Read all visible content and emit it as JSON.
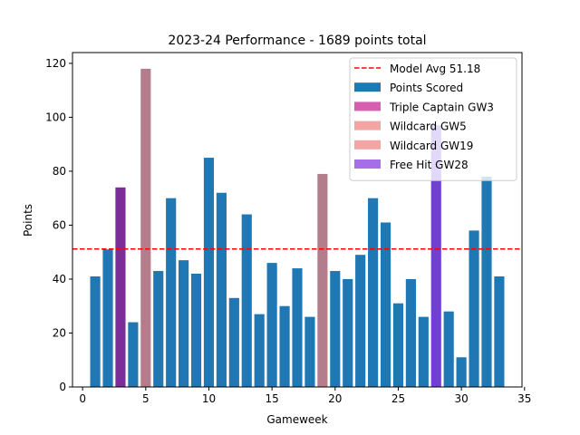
{
  "chart_data": {
    "type": "bar",
    "title": "2023-24 Performance - 1689 points total",
    "xlabel": "Gameweek",
    "ylabel": "Points",
    "xlim": [
      -0.8,
      34.8
    ],
    "ylim": [
      0,
      124
    ],
    "xticks": [
      0,
      5,
      10,
      15,
      20,
      25,
      30,
      35
    ],
    "yticks": [
      0,
      20,
      40,
      60,
      80,
      100,
      120
    ],
    "grid": false,
    "legend_position": "top-right",
    "series": [
      {
        "name": "Points Scored",
        "color": "#1f77b4",
        "x": [
          1,
          2,
          3,
          4,
          5,
          6,
          7,
          8,
          9,
          10,
          11,
          12,
          13,
          14,
          15,
          16,
          17,
          18,
          19,
          20,
          21,
          22,
          23,
          24,
          25,
          26,
          27,
          28,
          29,
          30,
          31,
          32,
          33
        ],
        "values": [
          41,
          51,
          74,
          24,
          118,
          43,
          70,
          47,
          42,
          85,
          72,
          33,
          64,
          27,
          46,
          30,
          44,
          26,
          79,
          43,
          40,
          49,
          70,
          61,
          31,
          40,
          26,
          97,
          28,
          11,
          58,
          78,
          41
        ]
      }
    ],
    "highlights": [
      {
        "name": "Triple Captain GW3",
        "gameweek": 3,
        "value": 74,
        "color": "#7b2d9a"
      },
      {
        "name": "Wildcard GW5",
        "gameweek": 5,
        "value": 118,
        "color": "#b47d8c"
      },
      {
        "name": "Wildcard GW19",
        "gameweek": 19,
        "value": 79,
        "color": "#b47d8c"
      },
      {
        "name": "Free Hit GW28",
        "gameweek": 28,
        "value": 97,
        "color": "#6f3fd6"
      }
    ],
    "reference_line": {
      "name": "Model Avg 51.18",
      "value": 51.18,
      "color": "#ff0000",
      "style": "dashed"
    },
    "legend": [
      {
        "label": "Model Avg 51.18",
        "kind": "line",
        "color": "#ff0000"
      },
      {
        "label": "Points Scored",
        "kind": "patch",
        "color": "#1f77b4"
      },
      {
        "label": "Triple Captain GW3",
        "kind": "patch",
        "color": "#d65fb0"
      },
      {
        "label": "Wildcard GW5",
        "kind": "patch",
        "color": "#f4a4a4"
      },
      {
        "label": "Wildcard GW19",
        "kind": "patch",
        "color": "#f4a4a4"
      },
      {
        "label": "Free Hit GW28",
        "kind": "patch",
        "color": "#a66ee8"
      }
    ]
  }
}
